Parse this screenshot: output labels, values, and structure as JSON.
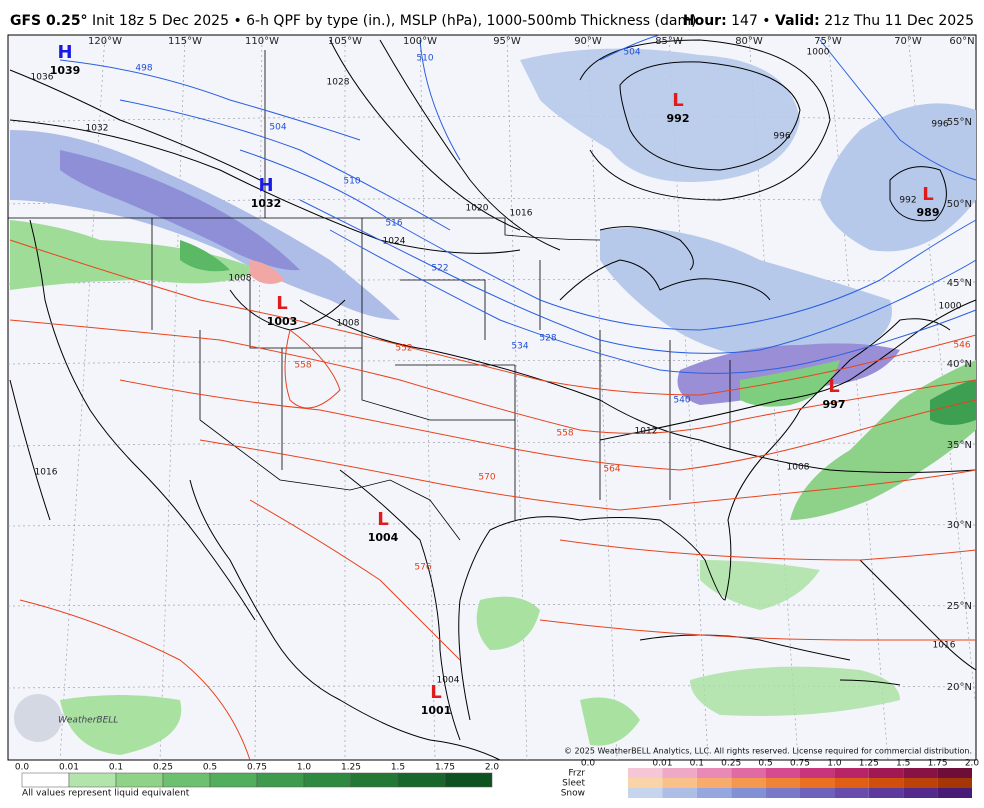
{
  "header": {
    "model": "GFS 0.25°",
    "description": "Init 18z 5 Dec 2025 • 6-h QPF by type (in.), MSLP (hPa), 1000-500mb Thickness (dam)",
    "hour_label": "Hour:",
    "hour_value": "147 •",
    "valid_label": "Valid:",
    "valid_value": "21z Thu 11 Dec 2025"
  },
  "map": {
    "lon_labels": [
      "120°W",
      "115°W",
      "110°W",
      "105°W",
      "100°W",
      "95°W",
      "90°W",
      "85°W",
      "80°W",
      "75°W",
      "70°W",
      "60°N"
    ],
    "lat_labels": [
      "55°N",
      "50°N",
      "45°N",
      "40°N",
      "35°N",
      "30°N",
      "25°N",
      "20°N"
    ],
    "pressure_centers": [
      {
        "type": "H",
        "value": "1039"
      },
      {
        "type": "H",
        "value": "1032"
      },
      {
        "type": "L",
        "value": "1003"
      },
      {
        "type": "L",
        "value": "992"
      },
      {
        "type": "L",
        "value": "989"
      },
      {
        "type": "L",
        "value": "997"
      },
      {
        "type": "L",
        "value": "1004"
      },
      {
        "type": "L",
        "value": "1001"
      }
    ],
    "isobar_labels": [
      "1036",
      "1032",
      "1028",
      "1024",
      "1020",
      "1016",
      "1016",
      "1012",
      "1008",
      "1008",
      "1008",
      "1004",
      "1000",
      "1000",
      "996",
      "996",
      "1016",
      "992"
    ],
    "thickness_cold_labels": [
      "498",
      "504",
      "510",
      "510",
      "504",
      "516",
      "522",
      "528",
      "534",
      "540"
    ],
    "thickness_warm_labels": [
      "546",
      "552",
      "558",
      "558",
      "564",
      "570",
      "576"
    ],
    "copyright": "© 2025 WeatherBELL Analytics, LLC. All rights reserved. License required for commercial distribution.",
    "logo": "WeatherBELL"
  },
  "legend": {
    "rain_ticks": [
      "0.0",
      "0.01",
      "0.1",
      "0.25",
      "0.5",
      "0.75",
      "1.0",
      "1.25",
      "1.5",
      "1.75",
      "2.0"
    ],
    "note": "All values represent liquid equivalent",
    "ptype_rows": [
      "Frzr",
      "Sleet",
      "Snow"
    ],
    "ptype_ticks": [
      "0.0",
      "0.01",
      "0.1",
      "0.25",
      "0.5",
      "0.75",
      "1.0",
      "1.25",
      "1.5",
      "1.75",
      "2.0"
    ]
  }
}
